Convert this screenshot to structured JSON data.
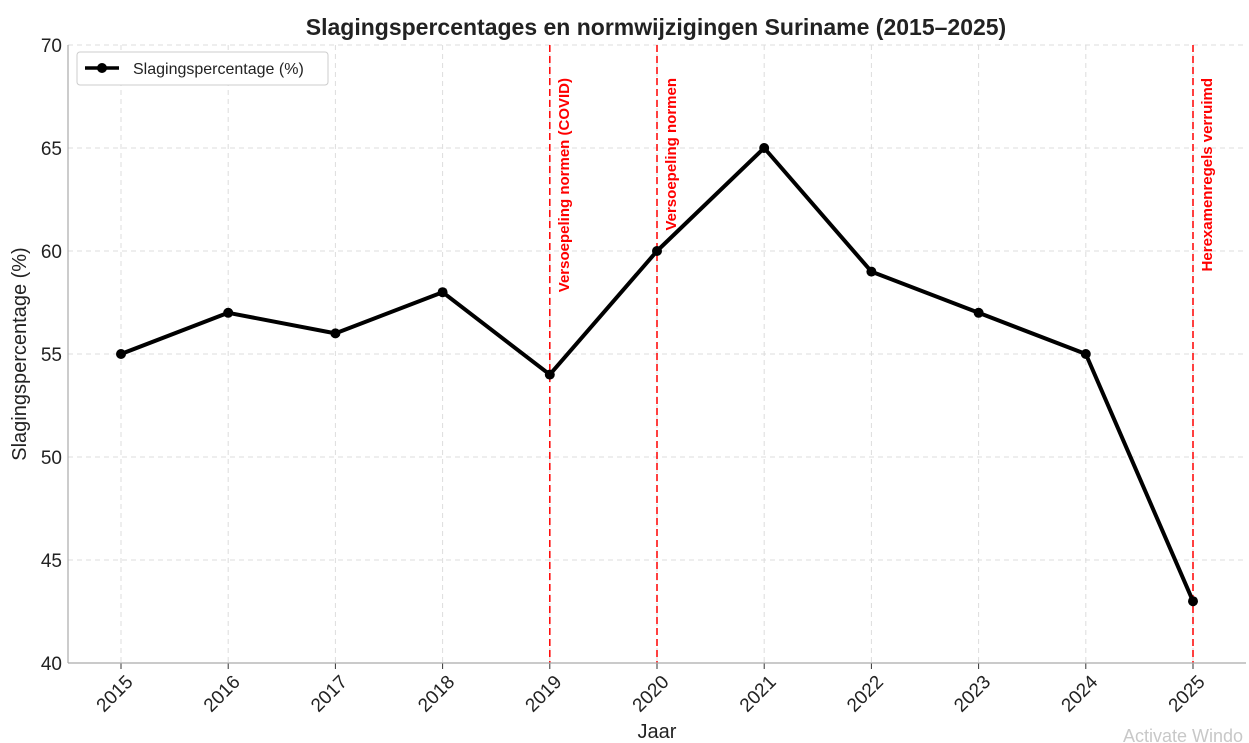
{
  "chart_data": {
    "type": "line",
    "title": "Slagingspercentages en normwijzigingen Suriname (2015–2025)",
    "xlabel": "Jaar",
    "ylabel": "Slagingspercentage (%)",
    "x": [
      "2015",
      "2016",
      "2017",
      "2018",
      "2019",
      "2020",
      "2021",
      "2022",
      "2023",
      "2024",
      "2025"
    ],
    "ylim": [
      40,
      70
    ],
    "yticks": [
      "40",
      "45",
      "50",
      "55",
      "60",
      "65",
      "70"
    ],
    "grid": true,
    "legend_position": "top-left",
    "series": [
      {
        "name": "Slagingspercentage (%)",
        "color": "#000000",
        "values": [
          55,
          57,
          56,
          58,
          54,
          60,
          65,
          59,
          57,
          55,
          43
        ]
      }
    ],
    "annotations": [
      {
        "x": "2019",
        "label": "Versoepeling normen (COVID)",
        "color": "#ff0000"
      },
      {
        "x": "2020",
        "label": "Versoepeling normen",
        "color": "#ff0000"
      },
      {
        "x": "2025",
        "label": "Herexamenregels verruimd",
        "color": "#ff0000"
      }
    ]
  },
  "overlay": {
    "watermark": "Activate Windo"
  }
}
